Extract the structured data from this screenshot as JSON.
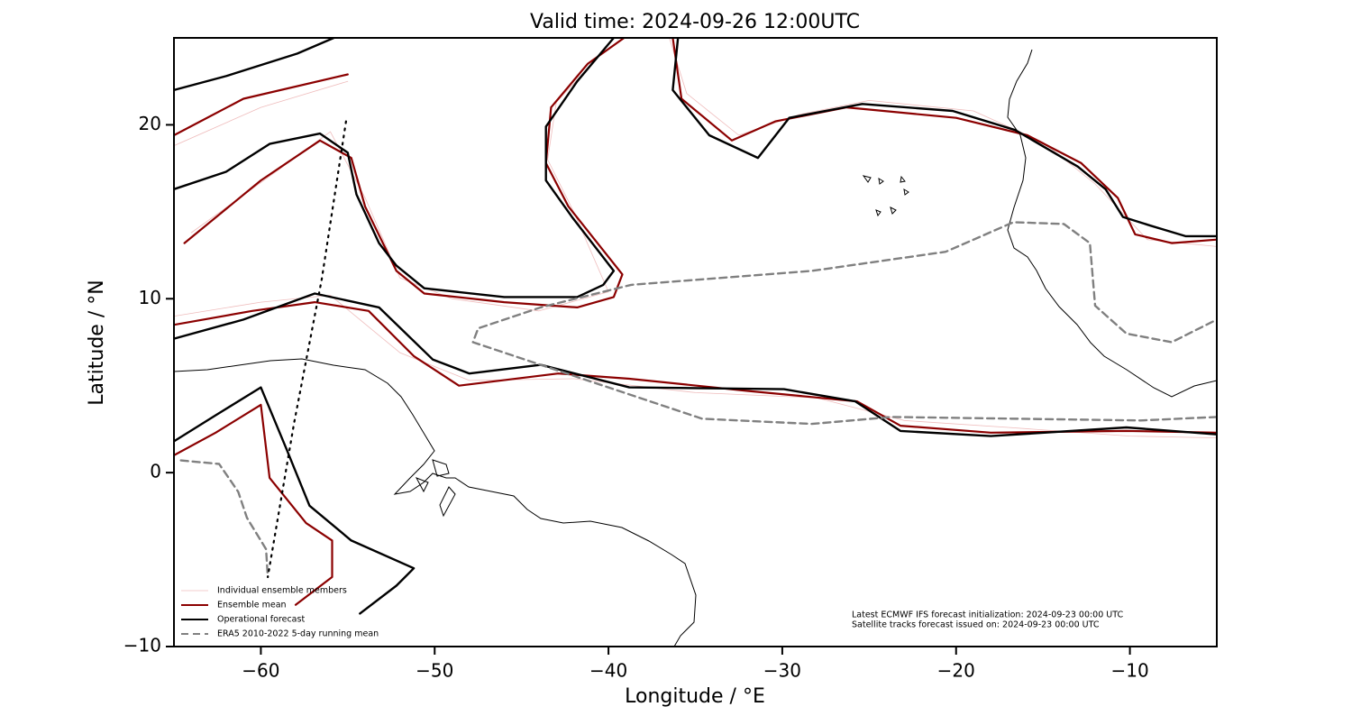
{
  "chart_data": {
    "type": "map",
    "title": "Valid time: 2024-09-26 12:00UTC",
    "x_label": "Longitude / °E",
    "y_label": "Latitude / °N",
    "xlim": [
      -65,
      -5
    ],
    "ylim": [
      -10,
      25
    ],
    "xticks": [
      {
        "value": -60,
        "label": "−60"
      },
      {
        "value": -50,
        "label": "−50"
      },
      {
        "value": -40,
        "label": "−40"
      },
      {
        "value": -30,
        "label": "−30"
      },
      {
        "value": -20,
        "label": "−20"
      },
      {
        "value": -10,
        "label": "−10"
      }
    ],
    "yticks": [
      {
        "value": -10,
        "label": "−10"
      },
      0,
      10,
      20
    ],
    "legend": "lower left",
    "annotations": [
      "Latest ECMWF IFS forecast initialization: 2024-09-23 00:00 UTC",
      "Satellite tracks forecast issued on: 2024-09-23 00:00 UTC"
    ],
    "series": [
      {
        "name": "Individual ensemble members",
        "color": "#e07a7a",
        "width": 0.8,
        "opacity": 0.5,
        "dash": "solid",
        "x": [
          -65,
          -60,
          -55,
          null,
          -64,
          -59,
          -56,
          -54,
          -52,
          -49,
          -44,
          -40,
          -42,
          -43.5,
          -43,
          -40.5,
          null,
          -36.5,
          -35.5,
          -32.5,
          -29,
          -25,
          -19,
          -15,
          -12,
          -9,
          -5,
          null,
          -65,
          -60,
          -56,
          -52,
          -48,
          -42,
          -35,
          -28,
          -23,
          -17,
          -10,
          -5
        ],
        "values": [
          18.8,
          21,
          22.5,
          null,
          13.8,
          17.4,
          19.6,
          15.8,
          11.2,
          10,
          9.3,
          10.4,
          15,
          18,
          21.3,
          24,
          null,
          25,
          21.8,
          19.4,
          20.6,
          21.4,
          20.8,
          19,
          16.6,
          13.4,
          13,
          null,
          9,
          9.8,
          10.2,
          6.9,
          5.3,
          5.4,
          4.6,
          4.3,
          3,
          2.6,
          2.1,
          2.0
        ]
      },
      {
        "name": "Ensemble mean",
        "color": "#8b0000",
        "width": 2.2,
        "opacity": 1,
        "dash": "solid",
        "x": [
          -65,
          -61,
          -55,
          null,
          -64.4,
          -60,
          -56.6,
          -54.8,
          -54,
          -52.2,
          -50.6,
          -46,
          -41.8,
          -39.7,
          -39.2,
          -42.3,
          -43.6,
          -43.3,
          -41.2,
          -39.1,
          null,
          -36.3,
          -35.8,
          -32.9,
          -30.4,
          -26.3,
          -20,
          -15.9,
          -12.8,
          -10.7,
          -9.7,
          -7.6,
          -5,
          null,
          -65,
          -60.5,
          -56.9,
          -53.8,
          -51.2,
          -48.6,
          -42.9,
          -38.8,
          -32,
          -25.7,
          -23.2,
          -18,
          -10.2,
          -5,
          null,
          -65,
          -62.6,
          -60,
          -59.5,
          -57.4,
          -55.9,
          -55.9,
          -58
        ],
        "values": [
          19.4,
          21.5,
          22.9,
          null,
          13.2,
          16.8,
          19.1,
          18.1,
          15.3,
          11.6,
          10.3,
          9.8,
          9.5,
          10.1,
          11.4,
          15.3,
          17.8,
          21,
          23.5,
          25,
          null,
          25,
          21.5,
          19.1,
          20.2,
          21,
          20.4,
          19.4,
          17.8,
          15.8,
          13.7,
          13.2,
          13.4,
          null,
          8.5,
          9.3,
          9.8,
          9.3,
          6.7,
          5,
          5.7,
          5.4,
          4.7,
          4.1,
          2.7,
          2.3,
          2.4,
          2.3,
          null,
          1,
          2.3,
          3.9,
          -0.3,
          -2.9,
          -3.9,
          -6,
          -7.6
        ]
      },
      {
        "name": "Operational forecast",
        "color": "#000000",
        "width": 2.4,
        "opacity": 1,
        "dash": "solid",
        "x": [
          -65,
          -62,
          -57.9,
          -55.8,
          null,
          -65,
          -62,
          -59.5,
          -56.6,
          -55,
          -54.5,
          -53.2,
          -52.2,
          -50.6,
          -46,
          -41.8,
          -40.3,
          -39.7,
          -42.1,
          -43.6,
          -43.6,
          -41.8,
          -39.7,
          null,
          -36,
          -36.3,
          -34.2,
          -31.4,
          -29.6,
          -25.4,
          -20.2,
          -16.6,
          -13,
          -11.4,
          -10.4,
          -8.8,
          -6.8,
          -5,
          null,
          -65,
          -61,
          -56.9,
          -53.2,
          -50.1,
          -48,
          -43.9,
          -38.8,
          -29.9,
          -25.8,
          -23.2,
          -18,
          -10.2,
          -5,
          null,
          -65,
          -62.6,
          -60,
          -58.5,
          -57.2,
          -54.8,
          -51.2,
          -52.2,
          -54.3
        ],
        "values": [
          22,
          22.8,
          24.1,
          25,
          null,
          16.3,
          17.3,
          18.9,
          19.5,
          18.4,
          16,
          13.2,
          11.9,
          10.6,
          10.1,
          10.1,
          10.8,
          11.6,
          14.7,
          16.8,
          19.9,
          22.5,
          25,
          null,
          25,
          22,
          19.4,
          18.1,
          20.4,
          21.2,
          20.8,
          19.7,
          17.6,
          16.3,
          14.7,
          14.2,
          13.6,
          13.6,
          null,
          7.7,
          8.8,
          10.3,
          9.5,
          6.5,
          5.7,
          6.2,
          4.9,
          4.8,
          4.1,
          2.4,
          2.1,
          2.6,
          2.2,
          null,
          1.8,
          3.3,
          4.9,
          1.3,
          -1.9,
          -3.9,
          -5.5,
          -6.5,
          -8.1
        ]
      },
      {
        "name": "ERA5 2010-2022 5-day running mean",
        "color": "#808080",
        "width": 2.4,
        "opacity": 1,
        "dash": "dashed",
        "x": [
          -5,
          -9.4,
          -23.7,
          -28.3,
          -34.6,
          -47.8,
          -47.5,
          -43.9,
          -38.7,
          -28.3,
          -20.6,
          -16.7,
          -13.8,
          -12.3,
          -12,
          -10.2,
          -7.6,
          -5,
          null,
          -64.6,
          -62.4,
          -61.3,
          -60.8,
          -59.7,
          -59.6
        ],
        "values": [
          3.2,
          3.0,
          3.2,
          2.8,
          3.1,
          7.5,
          8.3,
          9.5,
          10.8,
          11.6,
          12.7,
          14.4,
          14.3,
          13.2,
          9.6,
          8.0,
          7.5,
          8.8,
          null,
          0.7,
          0.5,
          -1.1,
          -2.6,
          -4.4,
          -6.0
        ]
      },
      {
        "color": "#000000",
        "width": 2.2,
        "opacity": 1,
        "dash": "dotted",
        "x": [
          -55.1,
          -56.5,
          -58.1,
          -59.6
        ],
        "values": [
          20.2,
          11.1,
          2.8,
          -6.0
        ]
      }
    ]
  }
}
